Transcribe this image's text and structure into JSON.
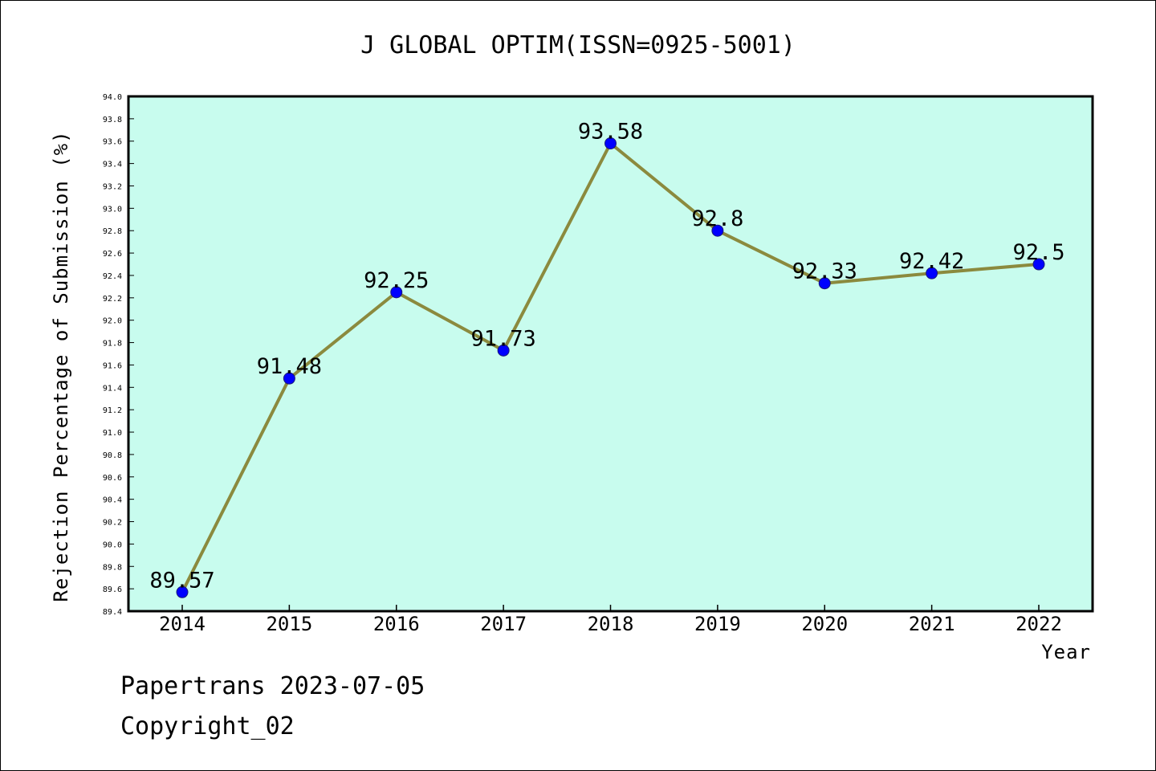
{
  "chart_data": {
    "type": "line",
    "title": "J GLOBAL OPTIM(ISSN=0925-5001)",
    "xlabel": "Year",
    "ylabel": "Rejection Percentage of Submission (%)",
    "ylim": [
      89.4,
      94.0
    ],
    "y_step": 0.2,
    "categories": [
      "2014",
      "2015",
      "2016",
      "2017",
      "2018",
      "2019",
      "2020",
      "2021",
      "2022"
    ],
    "series": [
      {
        "values": [
          89.57,
          91.48,
          92.25,
          91.73,
          93.58,
          92.8,
          92.33,
          92.42,
          92.5
        ],
        "labels": [
          "89.57",
          "91.48",
          "92.25",
          "91.73",
          "93.58",
          "92.8",
          "92.33",
          "92.42",
          "92.5"
        ]
      }
    ],
    "grid": false,
    "colors": {
      "plot_background": "#c8fcee",
      "line": "#8b8a3e",
      "marker": "#0000ff"
    }
  },
  "footer": {
    "line1": "Papertrans 2023-07-05",
    "line2": "Copyright_02"
  }
}
